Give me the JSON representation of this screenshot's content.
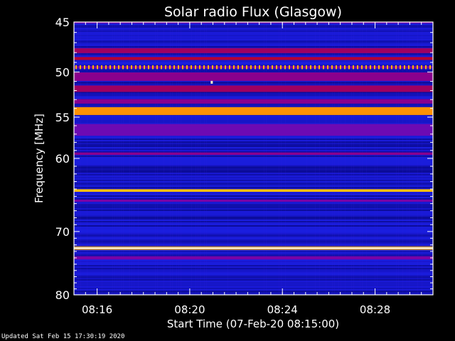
{
  "chart_data": {
    "type": "heatmap",
    "title": "Solar radio Flux (Glasgow)",
    "xlabel": "Start Time (07-Feb-20 08:15:00)",
    "ylabel": "Frequency [MHz]",
    "x_start": "08:15:00",
    "x_end": "08:30:30",
    "xlim_minutes": [
      15.0,
      30.5
    ],
    "x_ticks": [
      {
        "minute": 16,
        "label": "08:16"
      },
      {
        "minute": 20,
        "label": "08:20"
      },
      {
        "minute": 24,
        "label": "08:24"
      },
      {
        "minute": 28,
        "label": "08:28"
      }
    ],
    "ylim": [
      45,
      80
    ],
    "y_scale": "log",
    "y_axis_inverted": true,
    "y_ticks": [
      45,
      50,
      55,
      60,
      70,
      80
    ],
    "colormap": [
      "#000060",
      "#1a1ad8",
      "#2030ff",
      "#8000a0",
      "#c00020",
      "#ff1010",
      "#ffc000",
      "#ffffff"
    ],
    "background_level": 0.12,
    "bands": [
      {
        "mhz": 45.0,
        "width_mhz": 0.25,
        "level": 0.42
      },
      {
        "mhz": 47.8,
        "width_mhz": 0.5,
        "level": 0.5
      },
      {
        "mhz": 48.6,
        "width_mhz": 0.3,
        "level": 0.55
      },
      {
        "mhz": 49.5,
        "width_mhz": 0.25,
        "level": 0.7,
        "pulsed": true
      },
      {
        "mhz": 50.5,
        "width_mhz": 0.9,
        "level": 0.45
      },
      {
        "mhz": 51.8,
        "width_mhz": 0.7,
        "level": 0.5
      },
      {
        "mhz": 53.2,
        "width_mhz": 0.5,
        "level": 0.45
      },
      {
        "mhz": 54.3,
        "width_mhz": 0.9,
        "level": 0.82
      },
      {
        "mhz": 56.5,
        "width_mhz": 1.4,
        "level": 0.4
      },
      {
        "mhz": 59.4,
        "width_mhz": 0.3,
        "level": 0.45
      },
      {
        "mhz": 64.2,
        "width_mhz": 0.35,
        "level": 0.86
      },
      {
        "mhz": 65.6,
        "width_mhz": 0.3,
        "level": 0.42
      },
      {
        "mhz": 72.5,
        "width_mhz": 0.3,
        "level": 1.0
      },
      {
        "mhz": 74.0,
        "width_mhz": 0.5,
        "level": 0.42
      }
    ],
    "bursts": [
      {
        "minute": 20.95,
        "mhz": 51.1,
        "level": 0.97
      }
    ]
  },
  "footer": {
    "updated": "Updated Sat Feb 15 17:30:19 2020"
  }
}
